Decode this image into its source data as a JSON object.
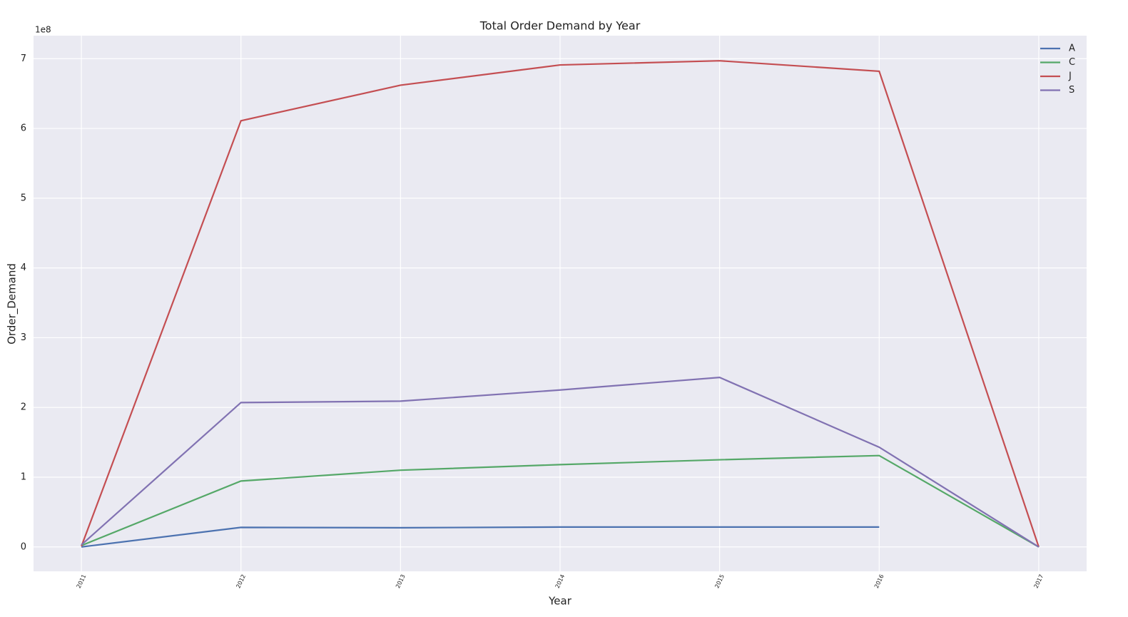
{
  "chart_data": {
    "type": "line",
    "title": "Total Order Demand by Year",
    "x_label": "Year",
    "y_label": "Order_Demand",
    "y_offset_label": "1e8",
    "x": [
      2011,
      2012,
      2013,
      2014,
      2015,
      2016,
      2017
    ],
    "series": [
      {
        "name": "A",
        "color": "#4c72b0",
        "values": [
          0,
          0.28,
          0.275,
          0.285,
          0.285,
          0.285,
          null
        ]
      },
      {
        "name": "C",
        "color": "#55a868",
        "values": [
          0.02,
          0.945,
          1.1,
          1.18,
          1.25,
          1.31,
          0
        ]
      },
      {
        "name": "J",
        "color": "#c44e52",
        "values": [
          0.01,
          6.11,
          6.62,
          6.91,
          6.97,
          6.82,
          0
        ]
      },
      {
        "name": "S",
        "color": "#8172b2",
        "values": [
          0.03,
          2.07,
          2.09,
          2.25,
          2.43,
          1.43,
          0
        ]
      }
    ],
    "xlim": [
      2010.7,
      2017.3
    ],
    "xticks": [
      2011,
      2012,
      2013,
      2014,
      2015,
      2016,
      2017
    ],
    "ylim": [
      -0.35,
      7.33
    ],
    "yticks": [
      0,
      1,
      2,
      3,
      4,
      5,
      6,
      7
    ],
    "grid": true,
    "legend": "upper right"
  }
}
